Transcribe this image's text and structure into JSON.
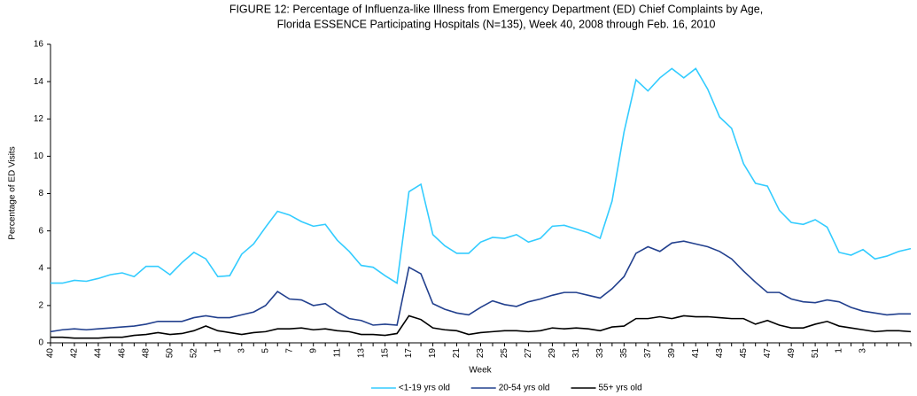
{
  "chart_data": {
    "type": "line",
    "title": [
      "FIGURE 12: Percentage of Influenza-like Illness from Emergency Department (ED) Chief Complaints by Age,",
      "Florida ESSENCE Participating Hospitals (N=135), Week 40, 2008 through Feb. 16, 2010"
    ],
    "x_label": "Week",
    "y_label": "Percentage of ED Visits",
    "categories": [
      "40",
      null,
      "42",
      null,
      "44",
      null,
      "46",
      null,
      "48",
      null,
      "50",
      null,
      "52",
      null,
      "1",
      null,
      "3",
      null,
      "5",
      null,
      "7",
      null,
      "9",
      null,
      "11",
      null,
      "13",
      null,
      "15",
      null,
      "17",
      null,
      "19",
      null,
      "21",
      null,
      "23",
      null,
      "25",
      null,
      "27",
      null,
      "29",
      null,
      "31",
      null,
      "33",
      null,
      "35",
      null,
      "37",
      null,
      "39",
      null,
      "41",
      null,
      "43",
      null,
      "45",
      null,
      "47",
      null,
      "49",
      null,
      "51",
      null,
      "1",
      null,
      "3",
      null,
      null,
      null,
      null
    ],
    "series": [
      {
        "name": "<1-19 yrs old",
        "color": "#33ccff",
        "values": [
          3.2,
          3.2,
          3.35,
          3.3,
          3.45,
          3.65,
          3.75,
          3.55,
          4.1,
          4.1,
          3.65,
          4.3,
          4.85,
          4.5,
          3.55,
          3.6,
          4.75,
          5.3,
          6.2,
          7.05,
          6.85,
          6.5,
          6.25,
          6.35,
          5.5,
          4.9,
          4.15,
          4.05,
          3.6,
          3.2,
          8.1,
          8.5,
          5.8,
          5.2,
          4.8,
          4.8,
          5.4,
          5.65,
          5.6,
          5.8,
          5.4,
          5.6,
          6.25,
          6.3,
          6.1,
          5.9,
          5.6,
          7.6,
          11.3,
          14.1,
          13.5,
          14.2,
          14.7,
          14.2,
          14.7,
          13.6,
          12.1,
          11.5,
          9.6,
          8.55,
          8.4,
          7.1,
          6.45,
          6.35,
          6.6,
          6.2,
          4.85,
          4.7,
          5.0,
          4.5,
          4.65,
          4.9,
          5.05
        ]
      },
      {
        "name": "20-54 yrs old",
        "color": "#22408e",
        "values": [
          0.6,
          0.7,
          0.75,
          0.7,
          0.75,
          0.8,
          0.85,
          0.9,
          1.0,
          1.15,
          1.15,
          1.15,
          1.35,
          1.45,
          1.35,
          1.35,
          1.5,
          1.65,
          2.0,
          2.75,
          2.35,
          2.3,
          2.0,
          2.1,
          1.65,
          1.3,
          1.2,
          0.95,
          1.0,
          0.95,
          4.05,
          3.7,
          2.1,
          1.8,
          1.6,
          1.5,
          1.9,
          2.25,
          2.05,
          1.95,
          2.2,
          2.35,
          2.55,
          2.7,
          2.7,
          2.55,
          2.4,
          2.9,
          3.55,
          4.8,
          5.15,
          4.9,
          5.35,
          5.45,
          5.3,
          5.15,
          4.9,
          4.5,
          3.85,
          3.25,
          2.7,
          2.7,
          2.35,
          2.2,
          2.15,
          2.3,
          2.2,
          1.9,
          1.7,
          1.6,
          1.5,
          1.55,
          1.55
        ]
      },
      {
        "name": "55+ yrs old",
        "color": "#000000",
        "values": [
          0.3,
          0.3,
          0.25,
          0.25,
          0.25,
          0.3,
          0.3,
          0.4,
          0.45,
          0.55,
          0.45,
          0.5,
          0.65,
          0.9,
          0.65,
          0.55,
          0.45,
          0.55,
          0.6,
          0.75,
          0.75,
          0.8,
          0.7,
          0.75,
          0.65,
          0.6,
          0.45,
          0.45,
          0.4,
          0.5,
          1.45,
          1.25,
          0.8,
          0.7,
          0.65,
          0.45,
          0.55,
          0.6,
          0.65,
          0.65,
          0.6,
          0.65,
          0.8,
          0.75,
          0.8,
          0.75,
          0.65,
          0.85,
          0.9,
          1.3,
          1.3,
          1.4,
          1.3,
          1.45,
          1.4,
          1.4,
          1.35,
          1.3,
          1.3,
          1.0,
          1.2,
          0.95,
          0.8,
          0.8,
          1.0,
          1.15,
          0.9,
          0.8,
          0.7,
          0.6,
          0.65,
          0.65,
          0.6
        ]
      }
    ],
    "ylim": [
      0,
      16
    ],
    "yticks": [
      0,
      2,
      4,
      6,
      8,
      10,
      12,
      14,
      16
    ],
    "grid": false,
    "legend": "bottom"
  }
}
